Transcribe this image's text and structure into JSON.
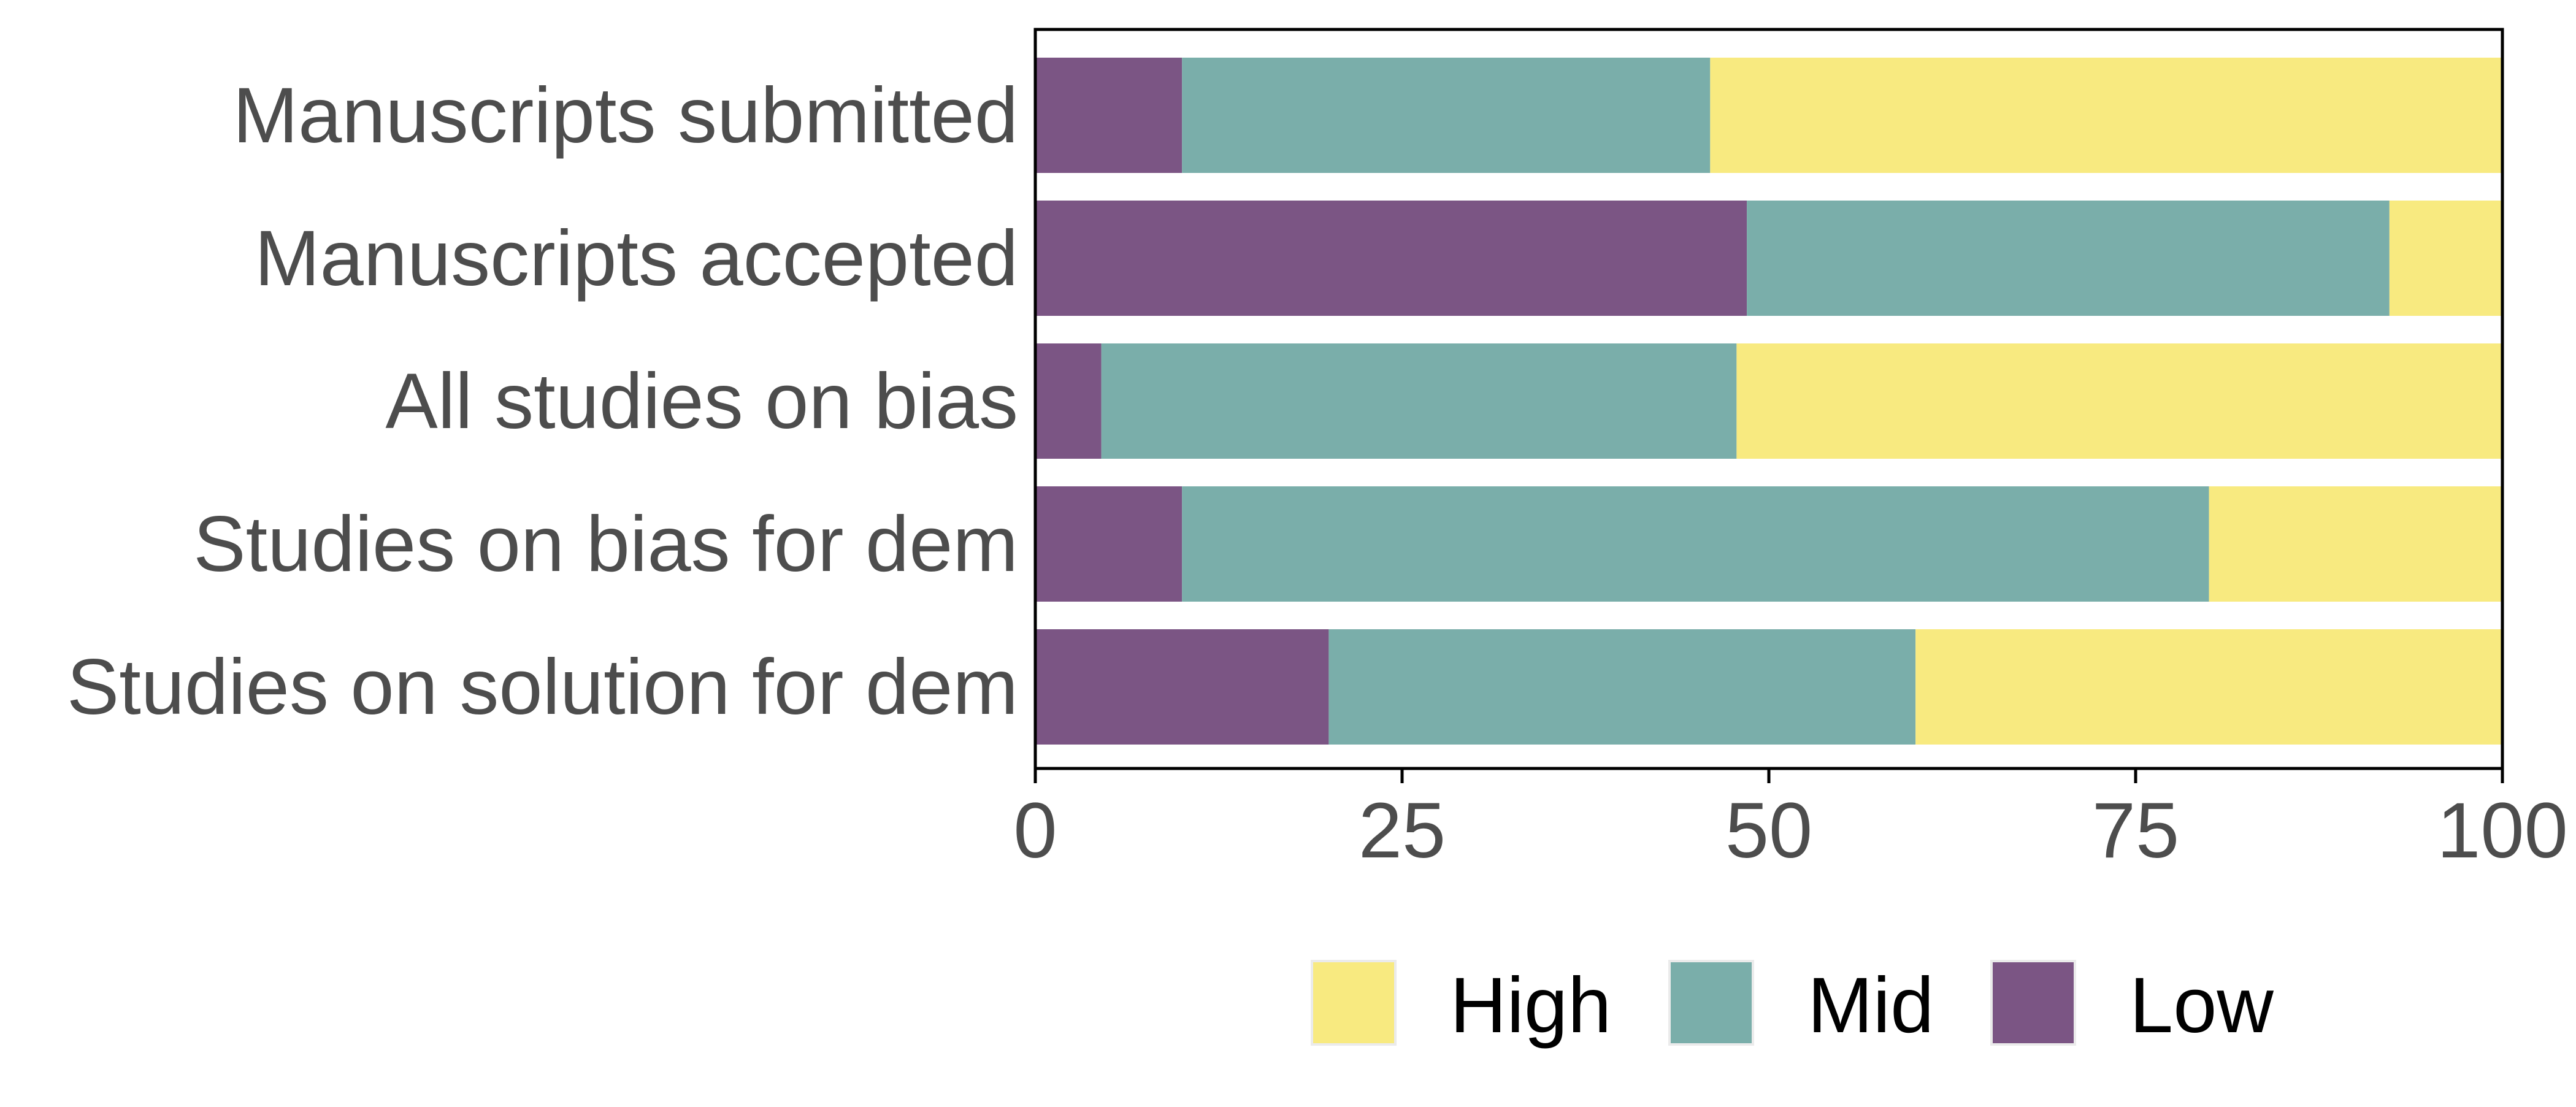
{
  "chart_data": {
    "type": "bar",
    "orientation": "horizontal",
    "stacked": true,
    "title": "",
    "xlabel": "",
    "ylabel": "",
    "xlim": [
      0,
      100
    ],
    "x_ticks": [
      0,
      25,
      50,
      75,
      100
    ],
    "categories": [
      "Manuscripts submitted",
      "Manuscripts accepted",
      "All studies on bias",
      "Studies on bias for dem",
      "Studies on solution for dem"
    ],
    "series": [
      {
        "name": "Low",
        "color": "#7b5584",
        "values": [
          10,
          48.5,
          4.5,
          10,
          20
        ]
      },
      {
        "name": "Mid",
        "color": "#7aaeaa",
        "values": [
          36,
          43.8,
          43.3,
          70,
          40
        ]
      },
      {
        "name": "High",
        "color": "#f8ea80",
        "values": [
          54,
          7.7,
          52.2,
          20,
          40
        ]
      }
    ],
    "legend": {
      "position": "bottom",
      "order": [
        "High",
        "Mid",
        "Low"
      ]
    },
    "grid": false,
    "axis_color": "#000000",
    "text_color": "#4d4d4d"
  }
}
